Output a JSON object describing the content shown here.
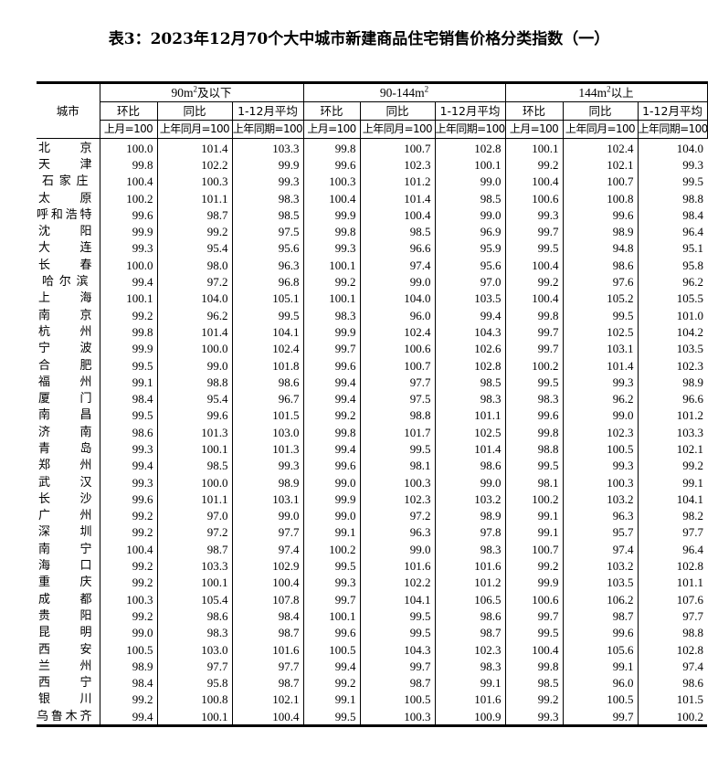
{
  "title": "表3：2023年12月70个大中城市新建商品住宅销售价格分类指数（一）",
  "header": {
    "city_label": "城市",
    "groups": [
      {
        "label_pre": "90m",
        "sup": "2",
        "label_post": "及以下"
      },
      {
        "label_pre": "90-144m",
        "sup": "2",
        "label_post": ""
      },
      {
        "label_pre": "144m",
        "sup": "2",
        "label_post": "以上"
      }
    ],
    "sub_labels": [
      "环比",
      "同比",
      "1-12月平均"
    ],
    "units": [
      "上月=100",
      "上年同月=100",
      "上年同期=100"
    ]
  },
  "rows": [
    {
      "city": "北京",
      "values": [
        "100.0",
        "101.4",
        "103.3",
        "99.8",
        "100.7",
        "102.8",
        "100.1",
        "102.4",
        "104.0"
      ]
    },
    {
      "city": "天津",
      "values": [
        "99.8",
        "102.2",
        "99.9",
        "99.6",
        "102.3",
        "100.1",
        "99.2",
        "102.1",
        "99.3"
      ]
    },
    {
      "city": "石家庄",
      "values": [
        "100.4",
        "100.3",
        "99.3",
        "100.3",
        "101.2",
        "99.0",
        "100.4",
        "100.7",
        "99.5"
      ]
    },
    {
      "city": "太原",
      "values": [
        "100.2",
        "101.1",
        "98.3",
        "100.4",
        "101.4",
        "98.5",
        "100.6",
        "100.8",
        "98.8"
      ]
    },
    {
      "city": "呼和浩特",
      "values": [
        "99.6",
        "98.7",
        "98.5",
        "99.9",
        "100.4",
        "99.0",
        "99.3",
        "99.6",
        "98.4"
      ]
    },
    {
      "city": "沈阳",
      "values": [
        "99.9",
        "99.2",
        "97.5",
        "99.8",
        "98.5",
        "96.9",
        "99.7",
        "98.9",
        "96.4"
      ]
    },
    {
      "city": "大连",
      "values": [
        "99.3",
        "95.4",
        "95.6",
        "99.3",
        "96.6",
        "95.9",
        "99.5",
        "94.8",
        "95.1"
      ]
    },
    {
      "city": "长春",
      "values": [
        "100.0",
        "98.0",
        "96.3",
        "100.1",
        "97.4",
        "95.6",
        "100.4",
        "98.6",
        "95.8"
      ]
    },
    {
      "city": "哈尔滨",
      "values": [
        "99.4",
        "97.2",
        "96.8",
        "99.2",
        "99.0",
        "97.0",
        "99.2",
        "97.6",
        "96.2"
      ]
    },
    {
      "city": "上海",
      "values": [
        "100.1",
        "104.0",
        "105.1",
        "100.1",
        "104.0",
        "103.5",
        "100.4",
        "105.2",
        "105.5"
      ]
    },
    {
      "city": "南京",
      "values": [
        "99.2",
        "96.2",
        "99.5",
        "98.3",
        "96.0",
        "99.4",
        "99.8",
        "99.5",
        "101.0"
      ]
    },
    {
      "city": "杭州",
      "values": [
        "99.8",
        "101.4",
        "104.1",
        "99.9",
        "102.4",
        "104.3",
        "99.7",
        "102.5",
        "104.2"
      ]
    },
    {
      "city": "宁波",
      "values": [
        "99.9",
        "100.0",
        "102.4",
        "99.7",
        "100.6",
        "102.6",
        "99.7",
        "103.1",
        "103.5"
      ]
    },
    {
      "city": "合肥",
      "values": [
        "99.5",
        "99.0",
        "101.8",
        "99.6",
        "100.7",
        "102.8",
        "100.2",
        "101.4",
        "102.3"
      ]
    },
    {
      "city": "福州",
      "values": [
        "99.1",
        "98.8",
        "98.6",
        "99.4",
        "97.7",
        "98.5",
        "99.5",
        "99.3",
        "98.9"
      ]
    },
    {
      "city": "厦门",
      "values": [
        "98.4",
        "95.4",
        "96.7",
        "99.4",
        "97.5",
        "98.3",
        "98.3",
        "96.2",
        "96.6"
      ]
    },
    {
      "city": "南昌",
      "values": [
        "99.5",
        "99.6",
        "101.5",
        "99.2",
        "98.8",
        "101.1",
        "99.6",
        "99.0",
        "101.2"
      ]
    },
    {
      "city": "济南",
      "values": [
        "98.6",
        "101.3",
        "103.0",
        "99.8",
        "101.7",
        "102.5",
        "99.8",
        "102.3",
        "103.3"
      ]
    },
    {
      "city": "青岛",
      "values": [
        "99.3",
        "100.1",
        "101.3",
        "99.4",
        "99.5",
        "101.4",
        "98.8",
        "100.5",
        "102.1"
      ]
    },
    {
      "city": "郑州",
      "values": [
        "99.4",
        "98.5",
        "99.3",
        "99.6",
        "98.1",
        "98.6",
        "99.5",
        "99.3",
        "99.2"
      ]
    },
    {
      "city": "武汉",
      "values": [
        "99.3",
        "100.0",
        "98.9",
        "99.0",
        "100.3",
        "99.0",
        "98.1",
        "100.3",
        "99.1"
      ]
    },
    {
      "city": "长沙",
      "values": [
        "99.6",
        "101.1",
        "103.1",
        "99.9",
        "102.3",
        "103.2",
        "100.2",
        "103.2",
        "104.1"
      ]
    },
    {
      "city": "广州",
      "values": [
        "99.2",
        "97.0",
        "99.0",
        "99.0",
        "97.2",
        "98.9",
        "99.1",
        "96.3",
        "98.2"
      ]
    },
    {
      "city": "深圳",
      "values": [
        "99.2",
        "97.2",
        "97.7",
        "99.1",
        "96.3",
        "97.8",
        "99.1",
        "95.7",
        "97.7"
      ]
    },
    {
      "city": "南宁",
      "values": [
        "100.4",
        "98.7",
        "97.4",
        "100.2",
        "99.0",
        "98.3",
        "100.7",
        "97.4",
        "96.4"
      ]
    },
    {
      "city": "海口",
      "values": [
        "99.2",
        "103.3",
        "102.9",
        "99.5",
        "101.6",
        "101.6",
        "99.2",
        "103.2",
        "102.8"
      ]
    },
    {
      "city": "重庆",
      "values": [
        "99.2",
        "100.1",
        "100.4",
        "99.3",
        "102.2",
        "101.2",
        "99.9",
        "103.5",
        "101.1"
      ]
    },
    {
      "city": "成都",
      "values": [
        "100.3",
        "105.4",
        "107.8",
        "99.7",
        "104.1",
        "106.5",
        "100.6",
        "106.2",
        "107.6"
      ]
    },
    {
      "city": "贵阳",
      "values": [
        "99.2",
        "98.6",
        "98.4",
        "100.1",
        "99.5",
        "98.6",
        "99.7",
        "98.7",
        "97.7"
      ]
    },
    {
      "city": "昆明",
      "values": [
        "99.0",
        "98.3",
        "98.7",
        "99.6",
        "99.5",
        "98.7",
        "99.5",
        "99.6",
        "98.8"
      ]
    },
    {
      "city": "西安",
      "values": [
        "100.5",
        "103.0",
        "101.6",
        "100.5",
        "104.3",
        "102.3",
        "100.4",
        "105.6",
        "102.8"
      ]
    },
    {
      "city": "兰州",
      "values": [
        "98.9",
        "97.7",
        "97.7",
        "99.4",
        "99.7",
        "98.3",
        "99.8",
        "99.1",
        "97.4"
      ]
    },
    {
      "city": "西宁",
      "values": [
        "98.4",
        "95.8",
        "98.7",
        "99.2",
        "98.7",
        "99.1",
        "98.5",
        "96.0",
        "98.6"
      ]
    },
    {
      "city": "银川",
      "values": [
        "99.2",
        "100.8",
        "102.1",
        "99.1",
        "100.5",
        "101.6",
        "99.2",
        "100.5",
        "101.5"
      ]
    },
    {
      "city": "乌鲁木齐",
      "values": [
        "99.4",
        "100.1",
        "100.4",
        "99.5",
        "100.3",
        "100.9",
        "99.3",
        "99.7",
        "100.2"
      ]
    }
  ]
}
